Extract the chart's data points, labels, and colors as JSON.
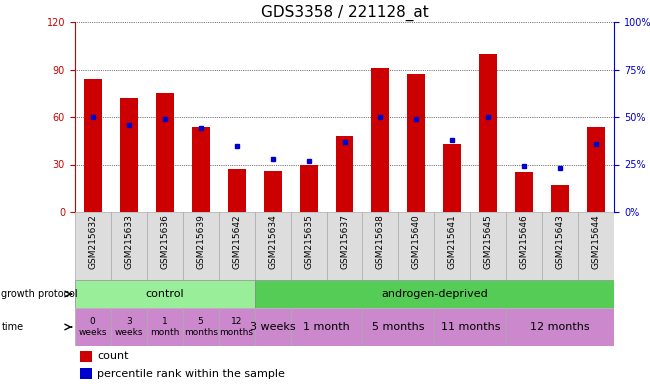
{
  "title": "GDS3358 / 221128_at",
  "samples": [
    "GSM215632",
    "GSM215633",
    "GSM215636",
    "GSM215639",
    "GSM215642",
    "GSM215634",
    "GSM215635",
    "GSM215637",
    "GSM215638",
    "GSM215640",
    "GSM215641",
    "GSM215645",
    "GSM215646",
    "GSM215643",
    "GSM215644"
  ],
  "counts": [
    84,
    72,
    75,
    54,
    27,
    26,
    30,
    48,
    91,
    87,
    43,
    100,
    25,
    17,
    54
  ],
  "percentiles": [
    50,
    46,
    49,
    44,
    35,
    28,
    27,
    37,
    50,
    49,
    38,
    50,
    24,
    23,
    36
  ],
  "bar_color": "#cc0000",
  "square_color": "#0000cc",
  "ylim_left": [
    0,
    120
  ],
  "ylim_right": [
    0,
    100
  ],
  "yticks_left": [
    0,
    30,
    60,
    90,
    120
  ],
  "yticks_right": [
    0,
    25,
    50,
    75,
    100
  ],
  "ylabel_left_color": "#cc0000",
  "ylabel_right_color": "#0000cc",
  "grid_color": "#000000",
  "bg_color": "#ffffff",
  "control_text": "control",
  "androgen_text": "androgen-deprived",
  "control_color": "#99ee99",
  "androgen_color": "#55cc55",
  "time_color_ctrl": "#cc88cc",
  "time_color_andr": "#cc88cc",
  "legend_count_color": "#cc0000",
  "legend_pct_color": "#0000cc",
  "bar_width": 0.5,
  "title_fontsize": 11,
  "tick_fontsize": 7,
  "sample_fontsize": 6.5,
  "n_samples": 15,
  "n_control": 5
}
